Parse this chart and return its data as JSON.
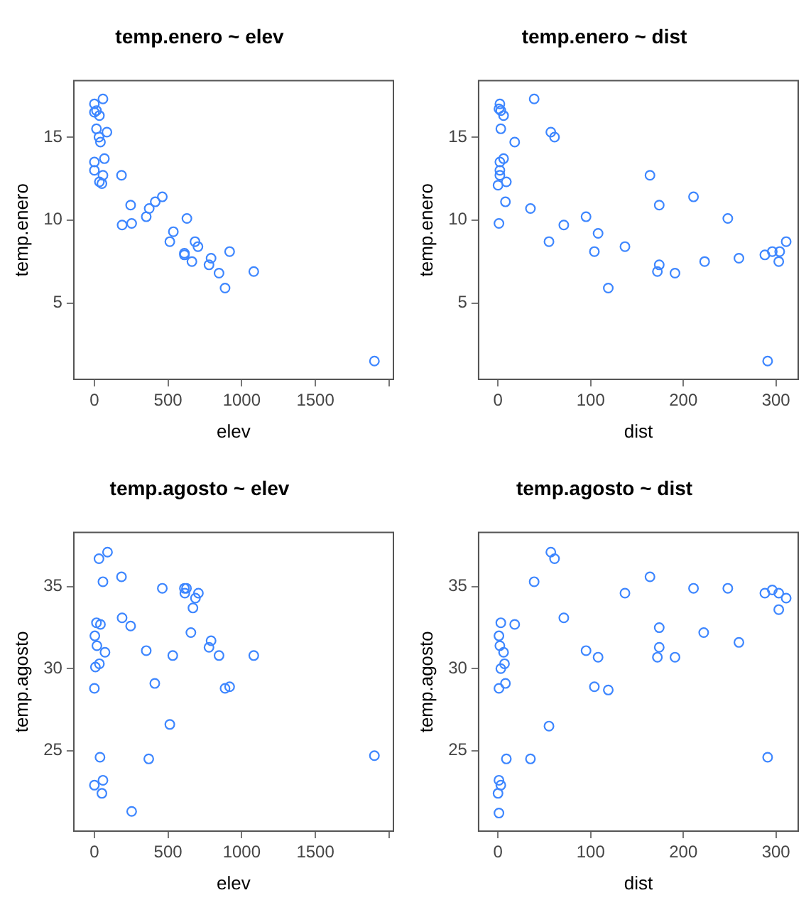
{
  "chart_data": [
    {
      "type": "scatter",
      "title": "temp.enero ~ elev",
      "xlabel": "elev",
      "ylabel": "temp.enero",
      "color": "#3d86ff",
      "marker": "circle",
      "grid": false,
      "xlim": [
        -140,
        2030
      ],
      "ylim": [
        0.4,
        18.4
      ],
      "xticks": [
        0,
        500,
        1000,
        1500,
        {
          "value": 2000,
          "label": null
        }
      ],
      "yticks": [
        5,
        10,
        15
      ],
      "x": [
        58,
        0,
        14,
        0,
        34,
        14,
        85,
        31,
        41,
        68,
        0,
        0,
        58,
        34,
        51,
        184,
        246,
        372,
        413,
        461,
        352,
        188,
        253,
        628,
        536,
        512,
        683,
        703,
        611,
        611,
        662,
        918,
        792,
        778,
        846,
        1082,
        887,
        1901
      ],
      "values": [
        17.3,
        17.0,
        16.6,
        16.5,
        16.3,
        15.5,
        15.3,
        15.0,
        14.7,
        13.7,
        13.5,
        13.0,
        12.7,
        12.3,
        12.2,
        12.7,
        10.9,
        10.7,
        11.1,
        11.4,
        10.2,
        9.7,
        9.8,
        10.1,
        9.3,
        8.7,
        8.7,
        8.4,
        8.0,
        7.9,
        7.5,
        8.1,
        7.7,
        7.3,
        6.8,
        6.9,
        5.9,
        1.5
      ]
    },
    {
      "type": "scatter",
      "title": "temp.enero ~ dist",
      "xlabel": "dist",
      "ylabel": "temp.enero",
      "color": "#3d86ff",
      "marker": "circle",
      "grid": false,
      "xlim": [
        -21,
        324
      ],
      "ylim": [
        0.4,
        18.4
      ],
      "xticks": [
        0,
        100,
        200,
        300
      ],
      "yticks": [
        5,
        10,
        15
      ],
      "x": [
        2,
        39,
        1,
        3,
        6,
        3,
        57,
        61,
        18,
        6,
        2,
        2,
        2,
        0,
        9,
        8,
        35,
        164,
        174,
        211,
        95,
        1,
        71,
        248,
        108,
        55,
        104,
        137,
        174,
        172,
        191,
        223,
        260,
        288,
        296,
        304,
        303,
        311,
        119,
        291
      ],
      "values": [
        17.0,
        17.3,
        16.7,
        16.6,
        16.3,
        15.5,
        15.3,
        15.0,
        14.7,
        13.7,
        13.5,
        13.0,
        12.7,
        12.1,
        12.3,
        11.1,
        10.7,
        12.7,
        10.9,
        11.4,
        10.2,
        9.8,
        9.7,
        10.1,
        9.2,
        8.7,
        8.1,
        8.4,
        7.3,
        6.9,
        6.8,
        7.5,
        7.7,
        7.9,
        8.1,
        8.1,
        7.5,
        8.7,
        5.9,
        1.5
      ]
    },
    {
      "type": "scatter",
      "title": "temp.agosto ~ elev",
      "xlabel": "elev",
      "ylabel": "temp.agosto",
      "color": "#3d86ff",
      "marker": "circle",
      "grid": false,
      "xlim": [
        -140,
        2030
      ],
      "ylim": [
        20.1,
        38.3
      ],
      "xticks": [
        0,
        500,
        1000,
        1500,
        {
          "value": 2000,
          "label": null
        }
      ],
      "yticks": [
        25,
        30,
        35
      ],
      "x": [
        89,
        31,
        58,
        184,
        461,
        611,
        625,
        614,
        706,
        686,
        669,
        14,
        41,
        188,
        246,
        3,
        655,
        17,
        72,
        352,
        532,
        792,
        778,
        846,
        1082,
        34,
        7,
        410,
        0,
        887,
        918,
        512,
        38,
        369,
        1901,
        58,
        0,
        51,
        253
      ],
      "values": [
        37.1,
        36.7,
        35.3,
        35.6,
        34.9,
        34.9,
        34.9,
        34.6,
        34.6,
        34.3,
        33.7,
        32.8,
        32.7,
        33.1,
        32.6,
        32.0,
        32.2,
        31.4,
        31.0,
        31.1,
        30.8,
        31.7,
        31.3,
        30.8,
        30.8,
        30.3,
        30.1,
        29.1,
        28.8,
        28.8,
        28.9,
        26.6,
        24.6,
        24.5,
        24.7,
        23.2,
        22.9,
        22.4,
        21.3
      ]
    },
    {
      "type": "scatter",
      "title": "temp.agosto ~ dist",
      "xlabel": "dist",
      "ylabel": "temp.agosto",
      "color": "#3d86ff",
      "marker": "circle",
      "grid": false,
      "xlim": [
        -21,
        324
      ],
      "ylim": [
        20.1,
        38.3
      ],
      "xticks": [
        0,
        100,
        200,
        300
      ],
      "yticks": [
        25,
        30,
        35
      ],
      "x": [
        57,
        61,
        39,
        164,
        137,
        211,
        248,
        288,
        296,
        303,
        311,
        303,
        3,
        18,
        71,
        174,
        222,
        1,
        2,
        6,
        95,
        174,
        260,
        108,
        172,
        191,
        7,
        3,
        8,
        1,
        104,
        119,
        55,
        9,
        35,
        291,
        1,
        3,
        0,
        1
      ],
      "values": [
        37.1,
        36.7,
        35.3,
        35.6,
        34.6,
        34.9,
        34.9,
        34.6,
        34.8,
        34.6,
        34.3,
        33.6,
        32.8,
        32.7,
        33.1,
        32.5,
        32.2,
        32.0,
        31.4,
        31.0,
        31.1,
        31.3,
        31.6,
        30.7,
        30.7,
        30.7,
        30.3,
        30.0,
        29.1,
        28.8,
        28.9,
        28.7,
        26.5,
        24.5,
        24.5,
        24.6,
        23.2,
        22.9,
        22.4,
        21.2
      ]
    }
  ]
}
